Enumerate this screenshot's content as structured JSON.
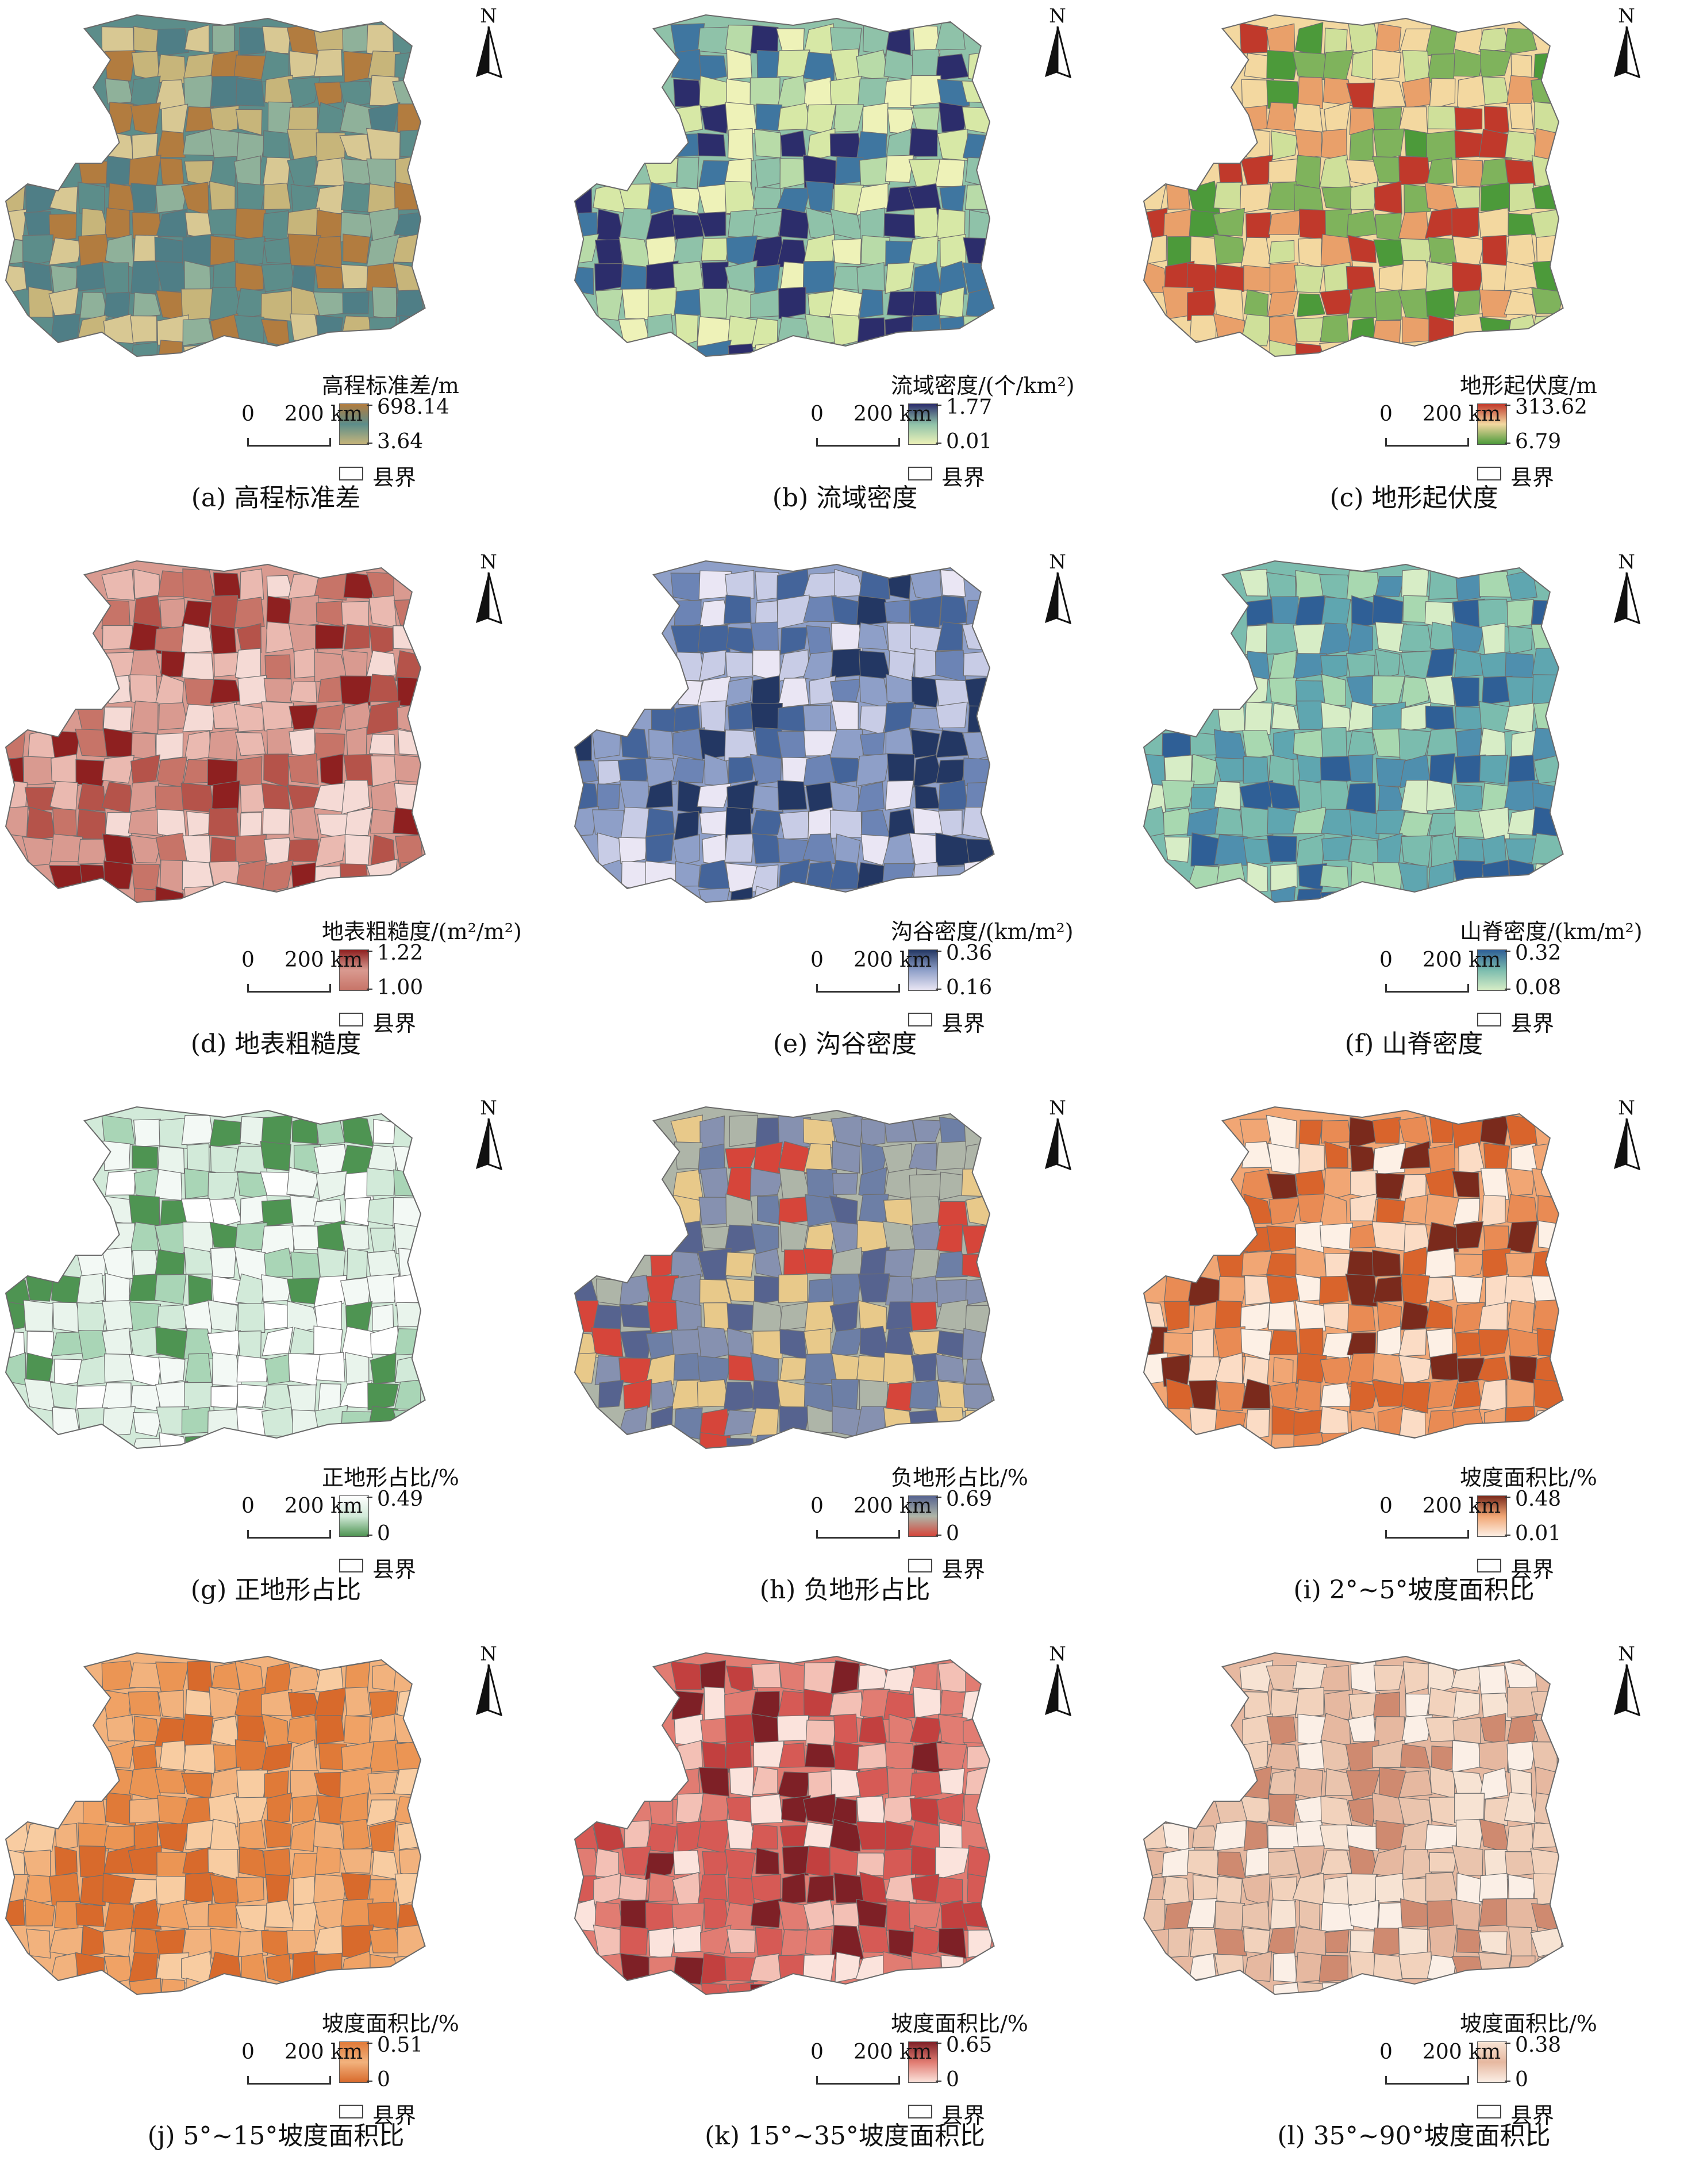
{
  "north_label": "N",
  "boundary_label": "县界",
  "scale_zero": "0",
  "scale_label": "200 km",
  "panels": [
    {
      "id": "a",
      "legend_title": "高程标准差/m",
      "max": "698.14",
      "min": "3.64",
      "caption": "(a) 高程标准差",
      "colors": [
        "#b27c3f",
        "#d8c893",
        "#5c8d8a",
        "#8fb19a",
        "#c7b57a",
        "#4f7e86"
      ]
    },
    {
      "id": "b",
      "legend_title": "流域密度/(个/km²)",
      "max": "1.77",
      "min": "0.01",
      "caption": "(b) 流域密度",
      "colors": [
        "#2c2d6b",
        "#3f76a0",
        "#8fc2a9",
        "#d7e8a6",
        "#eef2b8",
        "#b8dba8"
      ]
    },
    {
      "id": "c",
      "legend_title": "地形起伏度/m",
      "max": "313.62",
      "min": "6.79",
      "caption": "(c) 地形起伏度",
      "colors": [
        "#c0392b",
        "#e9a06a",
        "#f3d8a0",
        "#7fb35c",
        "#4c9a3a",
        "#cfe09a"
      ]
    },
    {
      "id": "d",
      "legend_title": "地表粗糙度/(m²/m²)",
      "max": "1.22",
      "min": "1.00",
      "caption": "(d) 地表粗糙度",
      "colors": [
        "#8e2020",
        "#b5534a",
        "#d99a90",
        "#f5dad5",
        "#c77468",
        "#eab9b0"
      ]
    },
    {
      "id": "e",
      "legend_title": "沟谷密度/(km/m²)",
      "max": "0.36",
      "min": "0.16",
      "caption": "(e) 沟谷密度",
      "colors": [
        "#233763",
        "#44649a",
        "#8e9fc8",
        "#c8cce6",
        "#eae6f4",
        "#6c84b5"
      ]
    },
    {
      "id": "f",
      "legend_title": "山脊密度/(km/m²)",
      "max": "0.32",
      "min": "0.08",
      "caption": "(f) 山脊密度",
      "colors": [
        "#2f5f96",
        "#4f8fae",
        "#7bbcae",
        "#a8d8b0",
        "#d7edc6",
        "#5fa6b0"
      ]
    },
    {
      "id": "g",
      "legend_title": "正地形占比/%",
      "max": "0.49",
      "min": "0",
      "caption": "(g) 正地形占比",
      "colors": [
        "#ffffff",
        "#f3f9f5",
        "#d2ead9",
        "#a9d5b6",
        "#4e9452",
        "#e9f4ec"
      ]
    },
    {
      "id": "h",
      "legend_title": "负地形占比/%",
      "max": "0.69",
      "min": "0",
      "caption": "(h) 负地形占比",
      "colors": [
        "#56638f",
        "#6d7fa6",
        "#aeb5a8",
        "#e8c98a",
        "#d6453a",
        "#8691b0"
      ]
    },
    {
      "id": "i",
      "legend_title": "坡度面积比/%",
      "max": "0.48",
      "min": "0.01",
      "caption": "(i) 2°~5°坡度面积比",
      "colors": [
        "#7a2a1c",
        "#d9642c",
        "#f1a674",
        "#fbdcc5",
        "#fdf0e5",
        "#e98b54"
      ]
    },
    {
      "id": "j",
      "legend_title": "坡度面积比/%",
      "max": "0.51",
      "min": "0",
      "caption": "(j) 5°~15°坡度面积比",
      "colors": [
        "#e07a38",
        "#eb9554",
        "#f2b27d",
        "#f8cca1",
        "#d86a2c",
        "#f0a265"
      ]
    },
    {
      "id": "k",
      "legend_title": "坡度面积比/%",
      "max": "0.65",
      "min": "0",
      "caption": "(k) 15°~35°坡度面积比",
      "colors": [
        "#7e2026",
        "#c2403f",
        "#e17c72",
        "#f3c0b5",
        "#fbe3dc",
        "#d65a55"
      ]
    },
    {
      "id": "l",
      "legend_title": "坡度面积比/%",
      "max": "0.38",
      "min": "0",
      "caption": "(l) 35°~90°坡度面积比",
      "colors": [
        "#f7e3d3",
        "#f2d2bc",
        "#e6b8a0",
        "#cf8a70",
        "#fbefe6",
        "#eac4ad"
      ]
    }
  ]
}
